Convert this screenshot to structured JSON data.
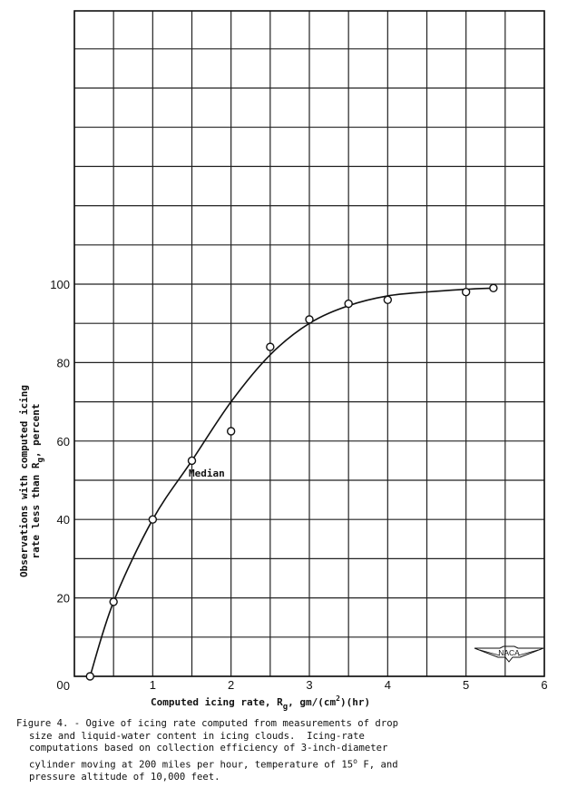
{
  "chart_data": {
    "type": "line",
    "title": "Figure 4. - Ogive of icing rate computed from measurements of drop size and liquid-water content in icing clouds.",
    "xlabel": "Computed icing rate, Rg,  gm/(cm2)(hr)",
    "ylabel": "Observations with computed icing rate less than Rg, percent",
    "xlim": [
      0,
      6
    ],
    "ylim": [
      0,
      170
    ],
    "x_ticks": [
      "0",
      "1",
      "2",
      "3",
      "4",
      "5",
      "6"
    ],
    "y_ticks": [
      "0",
      "20",
      "40",
      "60",
      "80",
      "100"
    ],
    "grid": true,
    "series": [
      {
        "name": "Observed points",
        "style": "open-circle markers",
        "x": [
          0.2,
          0.5,
          1.0,
          1.5,
          2.0,
          2.5,
          3.0,
          3.5,
          4.0,
          5.0,
          5.35
        ],
        "y": [
          0,
          19,
          40,
          55,
          62.5,
          84,
          91,
          95,
          96,
          98,
          99
        ]
      },
      {
        "name": "Fitted ogive curve",
        "style": "smooth line",
        "x": [
          0.2,
          0.5,
          1.0,
          1.5,
          2.0,
          2.5,
          3.0,
          3.5,
          4.0,
          4.5,
          5.0,
          5.35
        ],
        "y": [
          0,
          19,
          40,
          55,
          70,
          82,
          90,
          94.5,
          97,
          98,
          98.7,
          99
        ]
      }
    ],
    "annotations": [
      {
        "text": "Median",
        "x": 1.6,
        "y": 53
      }
    ]
  },
  "axes": {
    "xlabel_main": "Computed icing rate, R",
    "xlabel_sub": "g",
    "xlabel_units_a": "gm/(cm",
    "xlabel_units_sup": "2",
    "xlabel_units_b": ")(hr)",
    "ylabel_line1": "Observations with computed icing",
    "ylabel_line2_a": "rate less than R",
    "ylabel_line2_sub": "g",
    "ylabel_line2_b": ", percent"
  },
  "annotation_median": "Median",
  "logo_text": "NACA",
  "caption": {
    "line1": "Figure 4. - Ogive of icing rate computed from measurements of drop",
    "line2": "size and liquid-water content in icing clouds.  Icing-rate",
    "line3": "computations based on collection efficiency of 3-inch-diameter",
    "line4a": "cylinder moving at 200 miles per hour, temperature of 15",
    "line4deg": "o",
    "line4b": " F, and",
    "line5": "pressure altitude of 10,000 feet."
  }
}
